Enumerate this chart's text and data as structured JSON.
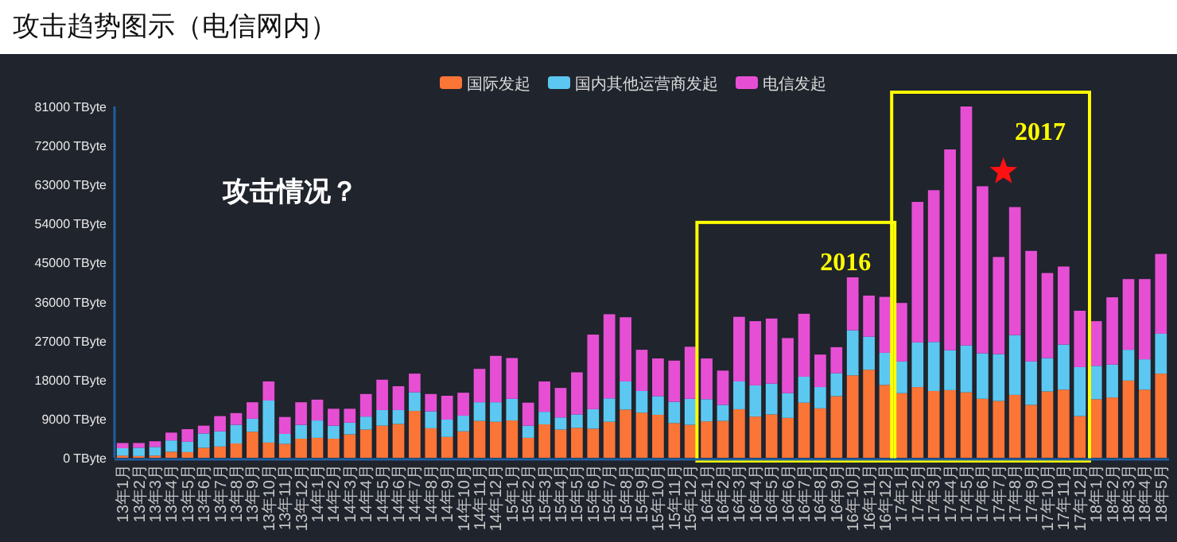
{
  "chart_data": {
    "type": "bar",
    "title": "攻击趋势图示（电信网内）",
    "stacked": true,
    "grid": false,
    "legend": "top",
    "categories": [
      "13年1月",
      "13年2月",
      "13年3月",
      "13年4月",
      "13年5月",
      "13年6月",
      "13年7月",
      "13年8月",
      "13年9月",
      "13年10月",
      "13年11月",
      "13年12月",
      "14年1月",
      "14年2月",
      "14年3月",
      "14年4月",
      "14年5月",
      "14年6月",
      "14年7月",
      "14年8月",
      "14年9月",
      "14年10月",
      "14年11月",
      "14年12月",
      "15年1月",
      "15年2月",
      "15年3月",
      "15年4月",
      "15年5月",
      "15年6月",
      "15年7月",
      "15年8月",
      "15年9月",
      "15年10月",
      "15年11月",
      "15年12月",
      "16年1月",
      "16年2月",
      "16年3月",
      "16年4月",
      "16年5月",
      "16年6月",
      "16年7月",
      "16年8月",
      "16年9月",
      "16年10月",
      "16年11月",
      "16年12月",
      "17年1月",
      "17年2月",
      "17年3月",
      "17年4月",
      "17年5月",
      "17年6月",
      "17年7月",
      "17年8月",
      "17年9月",
      "17年10月",
      "17年11月",
      "17年12月",
      "18年1月",
      "18年2月",
      "18年3月",
      "18年4月",
      "18年5月"
    ],
    "series": [
      {
        "name": "国际发起",
        "color": "#fb7536",
        "values": [
          500,
          400,
          500,
          1400,
          1300,
          2300,
          2600,
          3300,
          6000,
          3500,
          3200,
          4400,
          4600,
          4400,
          5400,
          6500,
          7400,
          7800,
          10800,
          6800,
          4800,
          6100,
          8500,
          8300,
          8600,
          4600,
          7700,
          6500,
          6900,
          6700,
          8300,
          11100,
          10400,
          9900,
          8000,
          7600,
          8400,
          8500,
          11200,
          9500,
          10000,
          9200,
          12700,
          11400,
          14200,
          19000,
          20300,
          16800,
          14900,
          16300,
          15400,
          15600,
          15100,
          13600,
          13100,
          14500,
          12200,
          15300,
          15700,
          9600,
          13500,
          13900,
          17800,
          15700,
          19400
        ]
      },
      {
        "name": "国内其他运营商发起",
        "color": "#5cc8f2",
        "values": [
          1700,
          1900,
          2000,
          2600,
          2400,
          3300,
          3500,
          4300,
          3000,
          9700,
          2300,
          3200,
          4000,
          3000,
          2700,
          3000,
          3600,
          3200,
          4300,
          3900,
          4000,
          3600,
          4300,
          4500,
          5000,
          2800,
          2900,
          2800,
          3100,
          4500,
          5400,
          6500,
          5000,
          4300,
          4900,
          6000,
          5100,
          3700,
          6400,
          7200,
          7100,
          5700,
          6000,
          4900,
          5300,
          10400,
          7600,
          7400,
          7300,
          10300,
          11300,
          9200,
          10800,
          10500,
          10800,
          13800,
          10000,
          7700,
          10400,
          11300,
          7700,
          7600,
          7100,
          7000,
          9200
        ]
      },
      {
        "name": "电信发起",
        "color": "#e64fd4",
        "values": [
          1200,
          1100,
          1300,
          1800,
          2900,
          1800,
          3500,
          2700,
          3800,
          4400,
          3900,
          5200,
          4800,
          3900,
          3200,
          5200,
          7000,
          5500,
          4300,
          4000,
          5500,
          5300,
          7700,
          10700,
          9400,
          5300,
          7000,
          6800,
          9700,
          17200,
          19400,
          14800,
          9500,
          8700,
          9500,
          12000,
          9400,
          7900,
          14900,
          14800,
          15000,
          12700,
          14500,
          7500,
          6000,
          12200,
          9500,
          12900,
          13500,
          32400,
          35000,
          46300,
          55100,
          38500,
          22400,
          29500,
          25500,
          19600,
          18000,
          13000,
          10300,
          15500,
          16300,
          18500,
          18400
        ]
      }
    ],
    "ylim": [
      0,
      81000
    ],
    "yticks": [
      {
        "value": 0,
        "label": "0 TByte"
      },
      {
        "value": 9000,
        "label": "9000 TByte"
      },
      {
        "value": 18000,
        "label": "18000 TByte"
      },
      {
        "value": 27000,
        "label": "27000 TByte"
      },
      {
        "value": 36000,
        "label": "36000 TByte"
      },
      {
        "value": 45000,
        "label": "45000 TByte"
      },
      {
        "value": 54000,
        "label": "54000 TByte"
      },
      {
        "value": 63000,
        "label": "63000 TByte"
      },
      {
        "value": 72000,
        "label": "72000 TByte"
      },
      {
        "value": 81000,
        "label": "81000 TByte"
      }
    ],
    "annotations": [
      "攻击情况？",
      "2016",
      "2017"
    ]
  }
}
